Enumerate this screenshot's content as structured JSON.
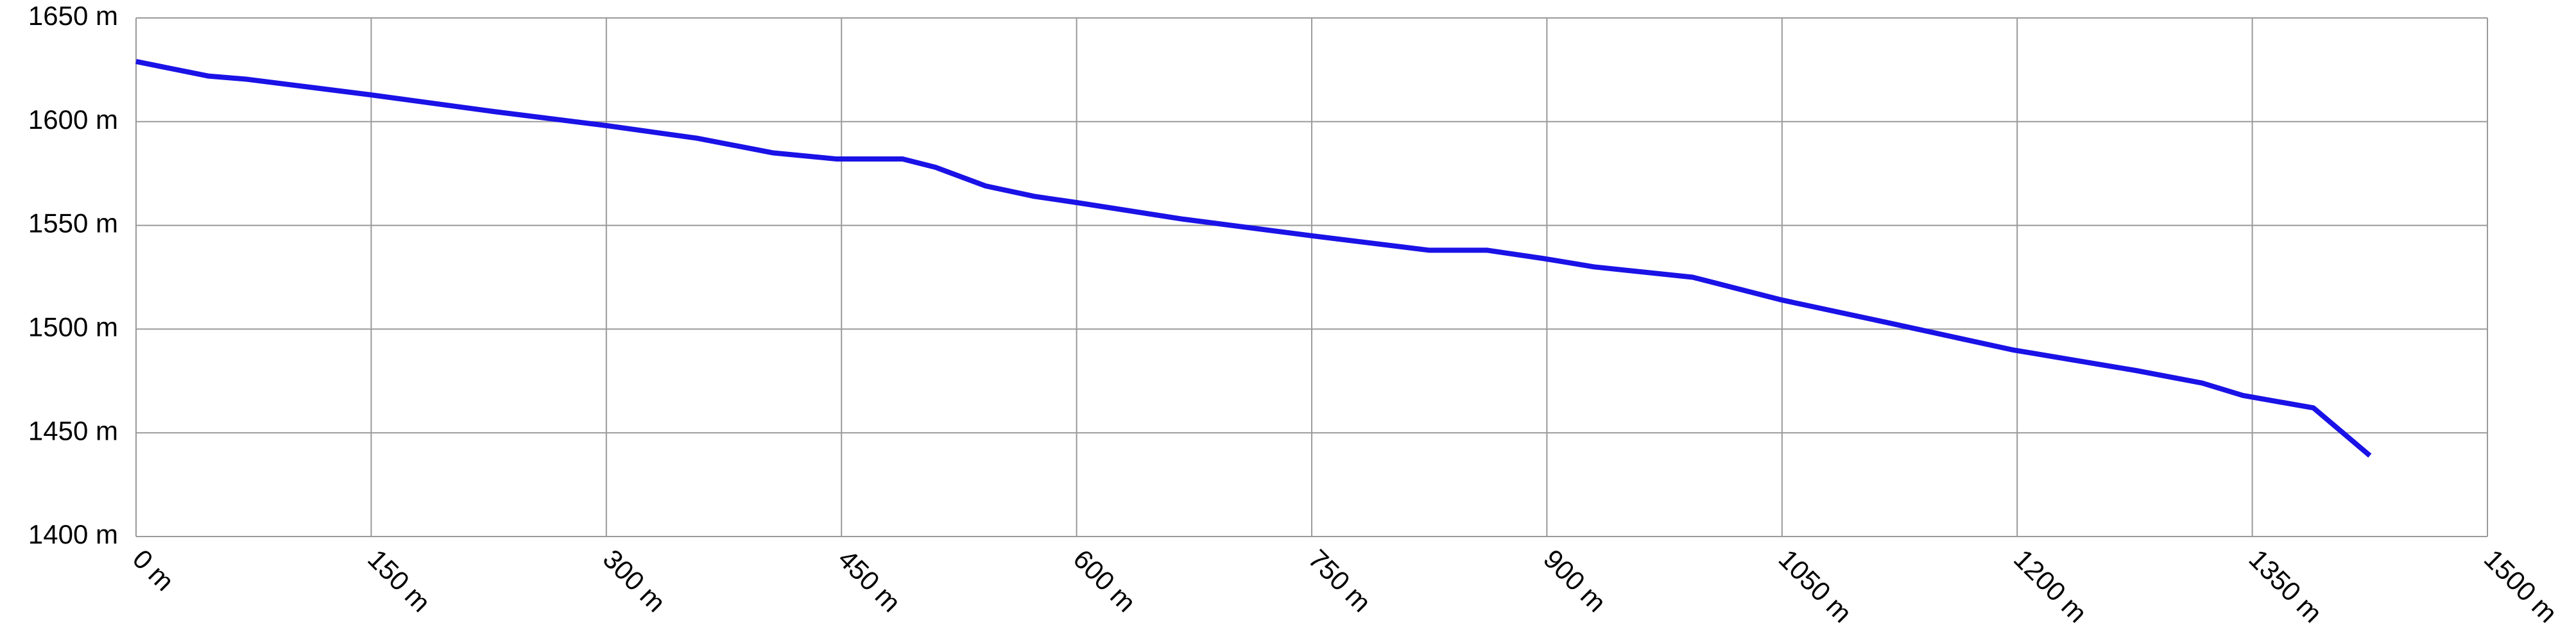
{
  "chart_data": {
    "type": "line",
    "color": "#1a12e6",
    "grid": true,
    "x": [
      0,
      46,
      70,
      149,
      227,
      301,
      358,
      406,
      447,
      489,
      510,
      542,
      573,
      600,
      668,
      750,
      825,
      862,
      898,
      930,
      993,
      1050,
      1118,
      1197,
      1276,
      1318,
      1344,
      1389,
      1425
    ],
    "values": [
      1629,
      1622,
      1620.5,
      1613,
      1605,
      1598,
      1592,
      1585,
      1582,
      1582,
      1578,
      1569,
      1564,
      1561,
      1553,
      1545,
      1538,
      1538,
      1534,
      1530,
      1525,
      1514,
      1503,
      1490,
      1480,
      1474,
      1468,
      1462,
      1439
    ],
    "xlim": [
      0,
      1500
    ],
    "xticks": [
      {
        "value": 0,
        "label": "0 m"
      },
      {
        "value": 150,
        "label": "150 m"
      },
      {
        "value": 300,
        "label": "300 m"
      },
      {
        "value": 450,
        "label": "450 m"
      },
      {
        "value": 600,
        "label": "600 m"
      },
      {
        "value": 750,
        "label": "750 m"
      },
      {
        "value": 900,
        "label": "900 m"
      },
      {
        "value": 1050,
        "label": "1050 m"
      },
      {
        "value": 1200,
        "label": "1200 m"
      },
      {
        "value": 1350,
        "label": "1350 m"
      },
      {
        "value": 1500,
        "label": "1500 m"
      }
    ],
    "ylim": [
      1400,
      1650
    ],
    "yticks": [
      {
        "value": 1400,
        "label": "1400 m"
      },
      {
        "value": 1450,
        "label": "1450 m"
      },
      {
        "value": 1500,
        "label": "1500 m"
      },
      {
        "value": 1550,
        "label": "1550 m"
      },
      {
        "value": 1600,
        "label": "1600 m"
      },
      {
        "value": 1650,
        "label": "1650 m"
      }
    ]
  }
}
